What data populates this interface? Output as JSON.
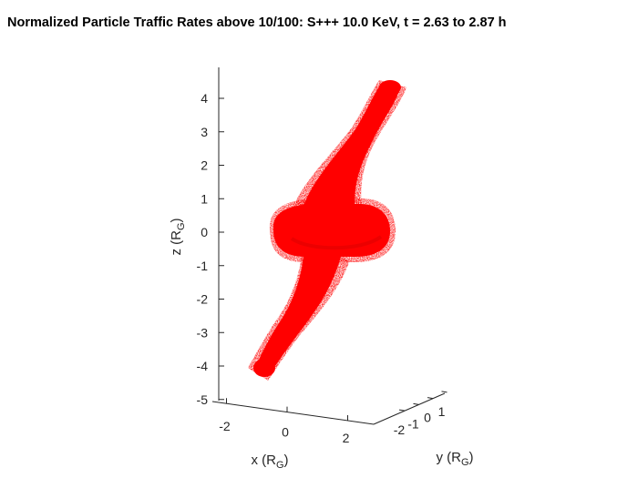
{
  "chart_data": {
    "type": "scatter",
    "title": "Normalized Particle Traffic Rates above 10/100: S+++ 10.0 KeV, t = 2.63 to 2.87 h",
    "xlabel": {
      "base": "x (R",
      "sub": "G",
      "close": ")"
    },
    "ylabel": {
      "base": "y (R",
      "sub": "G",
      "close": ")"
    },
    "zlabel": {
      "base": "z (R",
      "sub": "G",
      "close": ")"
    },
    "x_ticks": [
      "-2",
      "0",
      "2"
    ],
    "y_ticks": [
      "-2",
      "-1",
      "0",
      "1"
    ],
    "z_ticks": [
      "4",
      "3",
      "2",
      "1",
      "0",
      "-1",
      "-2",
      "-3",
      "-4",
      "-5"
    ],
    "zlim": [
      -5,
      4.5
    ],
    "marker_color": "#ff0000",
    "projection": "3d",
    "series": [
      {
        "components": [
          {
            "part": "central-torus",
            "z_center": 0.0,
            "half_height": 0.5,
            "half_width_x": 3.5
          },
          {
            "part": "upper-arm",
            "z_from": 0.5,
            "z_to": 4.4,
            "x_from": 0.8,
            "x_to": 3.2
          },
          {
            "part": "lower-arm",
            "z_from": -0.5,
            "z_to": -4.1,
            "x_from": -0.2,
            "x_to": -2.7
          }
        ]
      }
    ]
  }
}
